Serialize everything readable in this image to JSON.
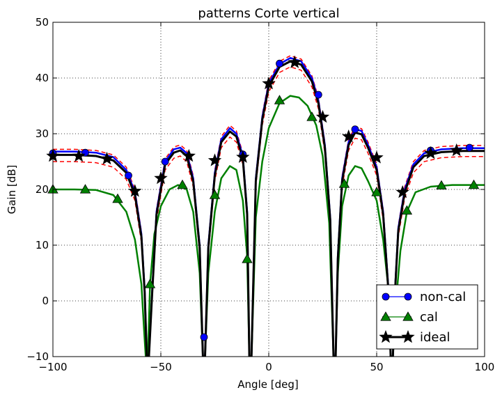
{
  "chart_data": {
    "type": "line",
    "title": "patterns Corte vertical",
    "xlabel": "Angle [deg]",
    "ylabel": "Gain [dB]",
    "xlim": [
      -100,
      100
    ],
    "ylim": [
      -10,
      50
    ],
    "xticks": [
      -100,
      -50,
      0,
      50,
      100
    ],
    "yticks": [
      -10,
      0,
      10,
      20,
      30,
      40,
      50
    ],
    "grid": true,
    "legend_position": "lower-right",
    "series": [
      {
        "name": "non-cal",
        "color": "#0000ff",
        "marker": "circle",
        "points": [
          [
            -100,
            26.8
          ],
          [
            -90,
            26.8
          ],
          [
            -80,
            26.6
          ],
          [
            -72,
            25.8
          ],
          [
            -66,
            23.5
          ],
          [
            -62,
            19.5
          ],
          [
            -59,
            12
          ],
          [
            -57.5,
            2
          ],
          [
            -56.5,
            -10
          ],
          [
            -55.5,
            -10
          ],
          [
            -54,
            2
          ],
          [
            -52,
            16
          ],
          [
            -48,
            25
          ],
          [
            -44,
            27.2
          ],
          [
            -41,
            27.5
          ],
          [
            -38,
            26.5
          ],
          [
            -35,
            22
          ],
          [
            -32,
            10
          ],
          [
            -30.5,
            -10
          ],
          [
            -29.5,
            -10
          ],
          [
            -28,
            10
          ],
          [
            -25,
            23
          ],
          [
            -22,
            29
          ],
          [
            -18,
            31
          ],
          [
            -15,
            30
          ],
          [
            -12,
            26
          ],
          [
            -10,
            16
          ],
          [
            -9,
            -10
          ],
          [
            -8,
            -10
          ],
          [
            -6,
            22
          ],
          [
            -3,
            33
          ],
          [
            0,
            39
          ],
          [
            5,
            42.5
          ],
          [
            10,
            43.6
          ],
          [
            15,
            43
          ],
          [
            20,
            40
          ],
          [
            23,
            36
          ],
          [
            26,
            28
          ],
          [
            28.5,
            15
          ],
          [
            30,
            -10
          ],
          [
            31,
            -10
          ],
          [
            32,
            8
          ],
          [
            34,
            22
          ],
          [
            37,
            28.5
          ],
          [
            40,
            30.8
          ],
          [
            43,
            30.5
          ],
          [
            46,
            28
          ],
          [
            50,
            24
          ],
          [
            53,
            16
          ],
          [
            55.5,
            2
          ],
          [
            56.5,
            -10
          ],
          [
            57.5,
            -10
          ],
          [
            58.5,
            2
          ],
          [
            60,
            13
          ],
          [
            63,
            20
          ],
          [
            67,
            24.5
          ],
          [
            72,
            26.5
          ],
          [
            80,
            27.2
          ],
          [
            90,
            27.4
          ],
          [
            100,
            27.4
          ]
        ],
        "marker_points": [
          [
            -100,
            26.5
          ],
          [
            -85,
            26.6
          ],
          [
            -65,
            22.5
          ],
          [
            -48,
            25
          ],
          [
            -30,
            -6.5
          ],
          [
            -12,
            26.3
          ],
          [
            5,
            42.6
          ],
          [
            23,
            37
          ],
          [
            40,
            30.8
          ],
          [
            75,
            27
          ],
          [
            93,
            27.5
          ]
        ]
      },
      {
        "name": "cal",
        "color": "#008000",
        "marker": "triangle",
        "points": [
          [
            -100,
            20
          ],
          [
            -90,
            20
          ],
          [
            -80,
            19.9
          ],
          [
            -72,
            19
          ],
          [
            -66,
            16
          ],
          [
            -62,
            11
          ],
          [
            -59,
            3
          ],
          [
            -57.8,
            -5
          ],
          [
            -57,
            -10
          ],
          [
            -56,
            -10
          ],
          [
            -55,
            3
          ],
          [
            -53,
            12
          ],
          [
            -50,
            17
          ],
          [
            -46,
            20
          ],
          [
            -42,
            20.8
          ],
          [
            -38,
            20
          ],
          [
            -35,
            16
          ],
          [
            -32,
            5
          ],
          [
            -30.5,
            -10
          ],
          [
            -29.5,
            -10
          ],
          [
            -28,
            5
          ],
          [
            -25,
            16
          ],
          [
            -22,
            22
          ],
          [
            -18,
            24.2
          ],
          [
            -15,
            23.5
          ],
          [
            -12,
            18
          ],
          [
            -10,
            8
          ],
          [
            -9,
            -10
          ],
          [
            -8,
            -10
          ],
          [
            -6,
            15
          ],
          [
            -3,
            25
          ],
          [
            0,
            31
          ],
          [
            5,
            35.5
          ],
          [
            10,
            36.8
          ],
          [
            14,
            36.5
          ],
          [
            18,
            35
          ],
          [
            22,
            31.5
          ],
          [
            25,
            26
          ],
          [
            28,
            14
          ],
          [
            30,
            -10
          ],
          [
            31,
            -10
          ],
          [
            32,
            5
          ],
          [
            34,
            17
          ],
          [
            37,
            22.5
          ],
          [
            40,
            24.2
          ],
          [
            43,
            23.8
          ],
          [
            46,
            21.5
          ],
          [
            50,
            18
          ],
          [
            53,
            11
          ],
          [
            55.5,
            2
          ],
          [
            56.5,
            -10
          ],
          [
            57.5,
            -10
          ],
          [
            59,
            0
          ],
          [
            61,
            9
          ],
          [
            64,
            16
          ],
          [
            68,
            19.5
          ],
          [
            75,
            20.5
          ],
          [
            85,
            20.8
          ],
          [
            100,
            20.8
          ]
        ],
        "marker_points": [
          [
            -100,
            20
          ],
          [
            -85,
            20
          ],
          [
            -70,
            18.3
          ],
          [
            -55,
            3
          ],
          [
            -40,
            20.8
          ],
          [
            -25,
            19
          ],
          [
            -10,
            7.5
          ],
          [
            5,
            36
          ],
          [
            20,
            33
          ],
          [
            35,
            21
          ],
          [
            50,
            19.5
          ],
          [
            64,
            16.2
          ],
          [
            80,
            20.7
          ],
          [
            95,
            20.8
          ]
        ]
      },
      {
        "name": "ideal",
        "color": "#000000",
        "marker": "star",
        "points": [
          [
            -100,
            26.2
          ],
          [
            -90,
            26.2
          ],
          [
            -80,
            26
          ],
          [
            -72,
            25.2
          ],
          [
            -66,
            23
          ],
          [
            -62,
            19
          ],
          [
            -59,
            11.5
          ],
          [
            -57.5,
            1.5
          ],
          [
            -56.5,
            -10
          ],
          [
            -55.5,
            -10
          ],
          [
            -54,
            1.5
          ],
          [
            -52,
            15.5
          ],
          [
            -48,
            24.5
          ],
          [
            -44,
            26.6
          ],
          [
            -41,
            27
          ],
          [
            -38,
            26
          ],
          [
            -35,
            21.5
          ],
          [
            -32,
            9.5
          ],
          [
            -30.5,
            -10
          ],
          [
            -29.5,
            -10
          ],
          [
            -28,
            9.5
          ],
          [
            -25,
            22.5
          ],
          [
            -22,
            28.5
          ],
          [
            -18,
            30.4
          ],
          [
            -15,
            29.5
          ],
          [
            -12,
            25.5
          ],
          [
            -10,
            15.5
          ],
          [
            -9,
            -10
          ],
          [
            -8,
            -10
          ],
          [
            -6,
            21.5
          ],
          [
            -3,
            32.5
          ],
          [
            0,
            38.5
          ],
          [
            5,
            42
          ],
          [
            10,
            43
          ],
          [
            15,
            42.4
          ],
          [
            20,
            39.4
          ],
          [
            23,
            35.5
          ],
          [
            26,
            27.5
          ],
          [
            28.5,
            14.5
          ],
          [
            30,
            -10
          ],
          [
            31,
            -10
          ],
          [
            32,
            7.5
          ],
          [
            34,
            21.5
          ],
          [
            37,
            28
          ],
          [
            40,
            30.2
          ],
          [
            43,
            29.9
          ],
          [
            46,
            27.5
          ],
          [
            50,
            23.5
          ],
          [
            53,
            15.5
          ],
          [
            55.5,
            1.5
          ],
          [
            56.5,
            -10
          ],
          [
            57.5,
            -10
          ],
          [
            58.5,
            1.5
          ],
          [
            60,
            12.5
          ],
          [
            63,
            19.5
          ],
          [
            67,
            24
          ],
          [
            72,
            26
          ],
          [
            80,
            26.7
          ],
          [
            90,
            26.9
          ],
          [
            100,
            26.9
          ]
        ],
        "marker_points": [
          [
            -100,
            26
          ],
          [
            -88,
            26
          ],
          [
            -75,
            25.5
          ],
          [
            -62,
            19.7
          ],
          [
            -50,
            22
          ],
          [
            -37,
            26
          ],
          [
            -25,
            25.2
          ],
          [
            -12,
            25.8
          ],
          [
            0,
            39
          ],
          [
            12,
            42.8
          ],
          [
            25,
            33
          ],
          [
            37,
            29.5
          ],
          [
            50,
            25.7
          ],
          [
            62,
            19.5
          ],
          [
            75,
            26.5
          ],
          [
            87,
            27
          ]
        ]
      }
    ],
    "bound_series": {
      "color": "#ff0000",
      "style": "dashed",
      "upper": [
        [
          -100,
          27.2
        ],
        [
          -90,
          27.2
        ],
        [
          -80,
          27
        ],
        [
          -72,
          26.2
        ],
        [
          -66,
          24
        ],
        [
          -62,
          20
        ],
        [
          -59,
          12.5
        ],
        [
          -57.5,
          2.5
        ],
        [
          -56.5,
          -10
        ],
        [
          -55.5,
          -10
        ],
        [
          -54,
          2.5
        ],
        [
          -52,
          16.5
        ],
        [
          -48,
          25.5
        ],
        [
          -44,
          27.6
        ],
        [
          -41,
          28
        ],
        [
          -38,
          27
        ],
        [
          -35,
          22.5
        ],
        [
          -32,
          10.5
        ],
        [
          -30.5,
          -10
        ],
        [
          -29.5,
          -10
        ],
        [
          -28,
          10.5
        ],
        [
          -25,
          23.5
        ],
        [
          -22,
          29.5
        ],
        [
          -18,
          31.5
        ],
        [
          -15,
          30.5
        ],
        [
          -12,
          26.5
        ],
        [
          -10,
          16.5
        ],
        [
          -9,
          -10
        ],
        [
          -8,
          -10
        ],
        [
          -6,
          22.5
        ],
        [
          -3,
          33.5
        ],
        [
          0,
          39.5
        ],
        [
          5,
          43
        ],
        [
          10,
          44
        ],
        [
          15,
          43.4
        ],
        [
          20,
          40.4
        ],
        [
          23,
          36.5
        ],
        [
          26,
          28.5
        ],
        [
          28.5,
          15.5
        ],
        [
          30,
          -10
        ],
        [
          31,
          -10
        ],
        [
          32,
          8.5
        ],
        [
          34,
          22.5
        ],
        [
          37,
          29
        ],
        [
          40,
          31.2
        ],
        [
          43,
          30.9
        ],
        [
          46,
          28.5
        ],
        [
          50,
          24.5
        ],
        [
          53,
          16.5
        ],
        [
          55.5,
          2.5
        ],
        [
          56.5,
          -10
        ],
        [
          57.5,
          -10
        ],
        [
          58.5,
          2.5
        ],
        [
          60,
          13.5
        ],
        [
          63,
          20.5
        ],
        [
          67,
          25
        ],
        [
          72,
          27
        ],
        [
          80,
          27.7
        ],
        [
          90,
          27.9
        ],
        [
          100,
          27.9
        ]
      ],
      "lower": [
        [
          -100,
          25
        ],
        [
          -90,
          25
        ],
        [
          -80,
          24.8
        ],
        [
          -72,
          24
        ],
        [
          -66,
          21.8
        ],
        [
          -62,
          18
        ],
        [
          -59,
          10.5
        ],
        [
          -57.5,
          0.5
        ],
        [
          -56.5,
          -10
        ],
        [
          -55.5,
          -10
        ],
        [
          -54,
          0.5
        ],
        [
          -52,
          14.5
        ],
        [
          -48,
          23.5
        ],
        [
          -44,
          25.6
        ],
        [
          -41,
          26
        ],
        [
          -38,
          25
        ],
        [
          -35,
          20.5
        ],
        [
          -32,
          8.5
        ],
        [
          -30.5,
          -10
        ],
        [
          -29.5,
          -10
        ],
        [
          -28,
          8.5
        ],
        [
          -25,
          21.5
        ],
        [
          -22,
          27.5
        ],
        [
          -18,
          29.4
        ],
        [
          -15,
          28.5
        ],
        [
          -12,
          24.5
        ],
        [
          -10,
          14.5
        ],
        [
          -9,
          -10
        ],
        [
          -8,
          -10
        ],
        [
          -6,
          20.5
        ],
        [
          -3,
          31.5
        ],
        [
          0,
          37.5
        ],
        [
          5,
          41
        ],
        [
          10,
          42
        ],
        [
          15,
          41.4
        ],
        [
          20,
          38.4
        ],
        [
          23,
          34.5
        ],
        [
          26,
          26.5
        ],
        [
          28.5,
          13.5
        ],
        [
          30,
          -10
        ],
        [
          31,
          -10
        ],
        [
          32,
          6.5
        ],
        [
          34,
          20.5
        ],
        [
          37,
          27
        ],
        [
          40,
          29.2
        ],
        [
          43,
          28.9
        ],
        [
          46,
          26.5
        ],
        [
          50,
          22.5
        ],
        [
          53,
          14.5
        ],
        [
          55.5,
          0.5
        ],
        [
          56.5,
          -10
        ],
        [
          57.5,
          -10
        ],
        [
          58.5,
          0.5
        ],
        [
          60,
          11.5
        ],
        [
          63,
          18.5
        ],
        [
          67,
          23
        ],
        [
          72,
          25
        ],
        [
          80,
          25.7
        ],
        [
          90,
          25.9
        ],
        [
          100,
          25.9
        ]
      ]
    }
  }
}
